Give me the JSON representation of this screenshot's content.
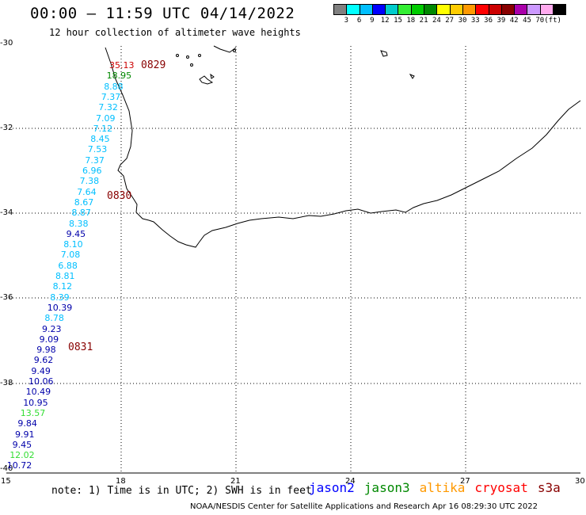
{
  "header": {
    "title": "00:00 – 11:59 UTC 04/14/2022",
    "subtitle": "12 hour collection of altimeter wave heights"
  },
  "color_legend": {
    "unit": "(ft)",
    "bins": [
      {
        "color": "#808080",
        "label": ""
      },
      {
        "color": "#00ffff",
        "label": "3"
      },
      {
        "color": "#00bfff",
        "label": "6"
      },
      {
        "color": "#0000ff",
        "label": "9"
      },
      {
        "color": "#00cccc",
        "label": "12"
      },
      {
        "color": "#33ee33",
        "label": "15"
      },
      {
        "color": "#00cc00",
        "label": "18"
      },
      {
        "color": "#008800",
        "label": "21"
      },
      {
        "color": "#ffff00",
        "label": "24"
      },
      {
        "color": "#ffcc00",
        "label": "27"
      },
      {
        "color": "#ff9900",
        "label": "30"
      },
      {
        "color": "#ff0000",
        "label": "33"
      },
      {
        "color": "#cc0000",
        "label": "36"
      },
      {
        "color": "#880000",
        "label": "39"
      },
      {
        "color": "#aa00aa",
        "label": "42"
      },
      {
        "color": "#cc99ff",
        "label": "45"
      },
      {
        "color": "#ffaaee",
        "label": "70"
      },
      {
        "color": "#000000",
        "label": ""
      }
    ]
  },
  "axes": {
    "lon_ticks": [
      "15",
      "18",
      "21",
      "24",
      "27",
      "30"
    ],
    "lat_ticks": [
      "-30",
      "-32",
      "-34",
      "-36",
      "-38",
      "-40"
    ]
  },
  "pass_times": [
    {
      "label": "0829",
      "color": "#880000"
    },
    {
      "label": "0830",
      "color": "#880000"
    },
    {
      "label": "0831",
      "color": "#880000"
    }
  ],
  "wave_heights": [
    {
      "value": "35.13",
      "color": "#cc0000"
    },
    {
      "value": "18.95",
      "color": "#008800"
    },
    {
      "value": "8.88",
      "color": "#00bfff"
    },
    {
      "value": "7.37",
      "color": "#00bfff"
    },
    {
      "value": "7.32",
      "color": "#00bfff"
    },
    {
      "value": "7.09",
      "color": "#00bfff"
    },
    {
      "value": "7.12",
      "color": "#00bfff"
    },
    {
      "value": "8.45",
      "color": "#00bfff"
    },
    {
      "value": "7.53",
      "color": "#00bfff"
    },
    {
      "value": "7.37",
      "color": "#00bfff"
    },
    {
      "value": "6.96",
      "color": "#00bfff"
    },
    {
      "value": "7.38",
      "color": "#00bfff"
    },
    {
      "value": "7.64",
      "color": "#00bfff"
    },
    {
      "value": "8.67",
      "color": "#00bfff"
    },
    {
      "value": "8.87",
      "color": "#00bfff"
    },
    {
      "value": "8.38",
      "color": "#00bfff"
    },
    {
      "value": "9.45",
      "color": "#0000aa"
    },
    {
      "value": "8.10",
      "color": "#00bfff"
    },
    {
      "value": "7.08",
      "color": "#00bfff"
    },
    {
      "value": "6.88",
      "color": "#00bfff"
    },
    {
      "value": "8.81",
      "color": "#00bfff"
    },
    {
      "value": "8.12",
      "color": "#00bfff"
    },
    {
      "value": "8.39",
      "color": "#00bfff"
    },
    {
      "value": "10.39",
      "color": "#0000aa"
    },
    {
      "value": "8.78",
      "color": "#00bfff"
    },
    {
      "value": "9.23",
      "color": "#0000aa"
    },
    {
      "value": "9.09",
      "color": "#0000aa"
    },
    {
      "value": "9.98",
      "color": "#0000aa"
    },
    {
      "value": "9.62",
      "color": "#0000aa"
    },
    {
      "value": "9.49",
      "color": "#0000aa"
    },
    {
      "value": "10.06",
      "color": "#0000aa"
    },
    {
      "value": "10.49",
      "color": "#0000aa"
    },
    {
      "value": "10.95",
      "color": "#0000aa"
    },
    {
      "value": "13.57",
      "color": "#33dd33"
    },
    {
      "value": "9.84",
      "color": "#0000aa"
    },
    {
      "value": "9.91",
      "color": "#0000aa"
    },
    {
      "value": "9.45",
      "color": "#0000aa"
    },
    {
      "value": "12.02",
      "color": "#33dd33"
    },
    {
      "value": "10.72",
      "color": "#0000aa"
    }
  ],
  "note": "note:  1) Time is in UTC;  2) SWH is in feet",
  "satellites": [
    {
      "name": "jason2",
      "color": "#0000ff"
    },
    {
      "name": "jason3",
      "color": "#008800"
    },
    {
      "name": "altika",
      "color": "#ff9900"
    },
    {
      "name": "cryosat",
      "color": "#ff0000"
    },
    {
      "name": "s3a",
      "color": "#880000"
    }
  ],
  "footer": "NOAA/NESDIS Center for Satellite Applications and Research    Apr 16 08:29:30 UTC 2022"
}
